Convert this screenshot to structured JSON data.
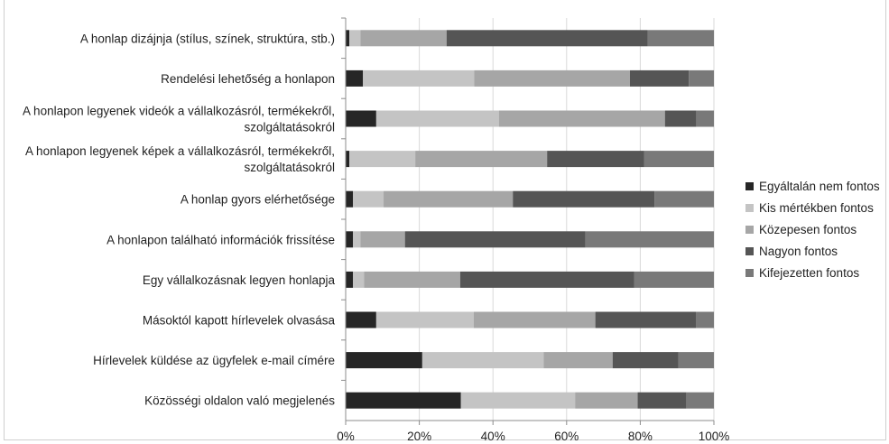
{
  "chart_data": {
    "type": "bar",
    "orientation": "horizontal",
    "stacked": "percent",
    "title": "",
    "xlabel": "",
    "ylabel": "",
    "xlim": [
      0,
      100
    ],
    "x_ticks": [
      "0%",
      "20%",
      "40%",
      "60%",
      "80%",
      "100%"
    ],
    "grid": true,
    "legend_position": "right",
    "categories": [
      [
        "A honlap dizájnja (stílus, színek, struktúra, stb.)"
      ],
      [
        "Rendelési lehetőség a honlapon"
      ],
      [
        "A honlapon legyenek videók a vállalkozásról, termékekről,",
        "szolgáltatásokról"
      ],
      [
        "A honlapon legyenek képek a vállalkozásról, termékekről,",
        "szolgáltatásokról"
      ],
      [
        "A honlap gyors elérhetősége"
      ],
      [
        "A honlapon található információk frissítése"
      ],
      [
        "Egy vállalkozásnak legyen honlapja"
      ],
      [
        "Másoktól kapott hírlevelek olvasása"
      ],
      [
        "Hírlevelek küldése az ügyfelek e-mail címére"
      ],
      [
        "Közösségi oldalon való megjelenés"
      ]
    ],
    "series": [
      {
        "name": "Egyáltalán nem fontos",
        "color": "#262626",
        "values": [
          1.0,
          4.7,
          8.3,
          1.0,
          2.0,
          2.0,
          2.0,
          8.3,
          20.8,
          31.3
        ]
      },
      {
        "name": "Kis mértékben fontos",
        "color": "#c4c4c4",
        "values": [
          3.0,
          30.2,
          33.3,
          17.9,
          8.3,
          2.0,
          3.0,
          26.5,
          33.0,
          31.0
        ]
      },
      {
        "name": "Közepesen fontos",
        "color": "#a6a6a6",
        "values": [
          23.4,
          42.3,
          45.1,
          35.8,
          35.1,
          12.1,
          26.1,
          33.0,
          18.7,
          17.0
        ]
      },
      {
        "name": "Nagyon fontos",
        "color": "#555555",
        "values": [
          54.6,
          16.0,
          8.5,
          26.3,
          38.5,
          49.0,
          47.3,
          27.3,
          17.9,
          13.2
        ]
      },
      {
        "name": "Kifejezetten fontos",
        "color": "#797979",
        "values": [
          18.0,
          6.8,
          4.8,
          19.0,
          16.1,
          34.9,
          21.6,
          4.9,
          9.6,
          7.5
        ]
      }
    ]
  }
}
